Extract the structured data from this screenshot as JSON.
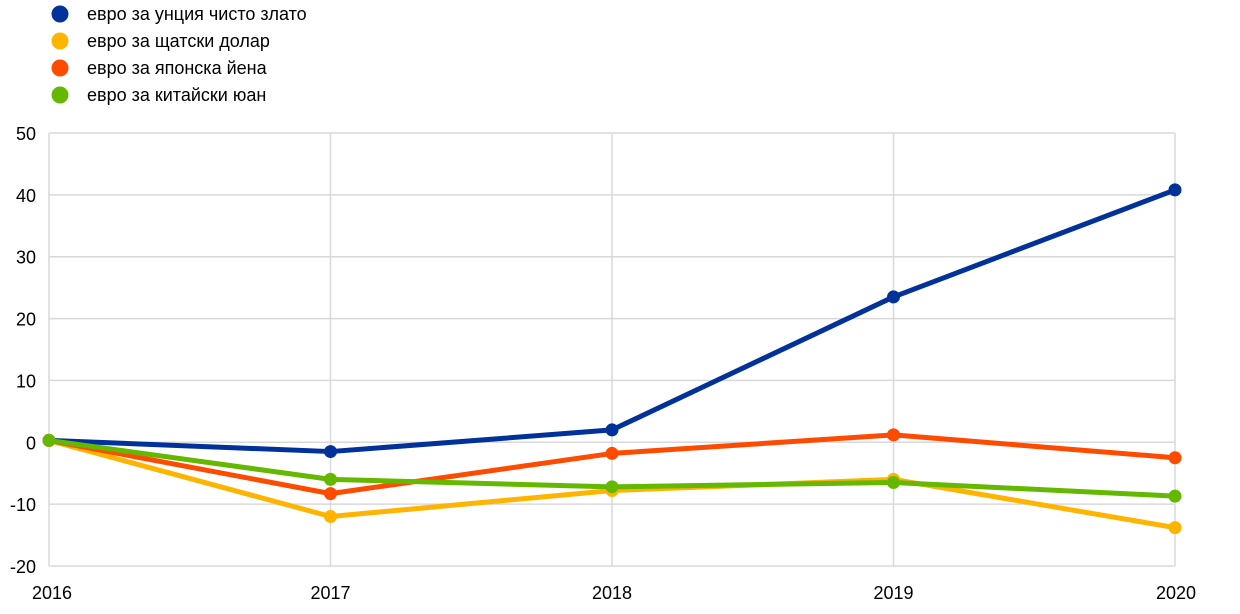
{
  "chart_data": {
    "type": "line",
    "x": [
      "2016",
      "2017",
      "2018",
      "2019",
      "2020"
    ],
    "ylim": [
      -20,
      50
    ],
    "yticks": [
      "-20",
      "-10",
      "0",
      "10",
      "20",
      "30",
      "40",
      "50"
    ],
    "grid": true,
    "legend_position": "top-left",
    "series": [
      {
        "name": "евро за унция чисто злато",
        "color": "#003299",
        "values": [
          0.3,
          -1.5,
          2.0,
          23.5,
          40.8
        ]
      },
      {
        "name": "евро за щатски долар",
        "color": "#FFB400",
        "values": [
          0.3,
          -12.0,
          -7.8,
          -6.0,
          -13.8
        ]
      },
      {
        "name": "евро за японска йена",
        "color": "#FF4B00",
        "values": [
          0.3,
          -8.3,
          -1.8,
          1.2,
          -2.5
        ]
      },
      {
        "name": "евро за китайски юан",
        "color": "#65B800",
        "values": [
          0.3,
          -6.0,
          -7.2,
          -6.5,
          -8.7
        ]
      }
    ]
  }
}
